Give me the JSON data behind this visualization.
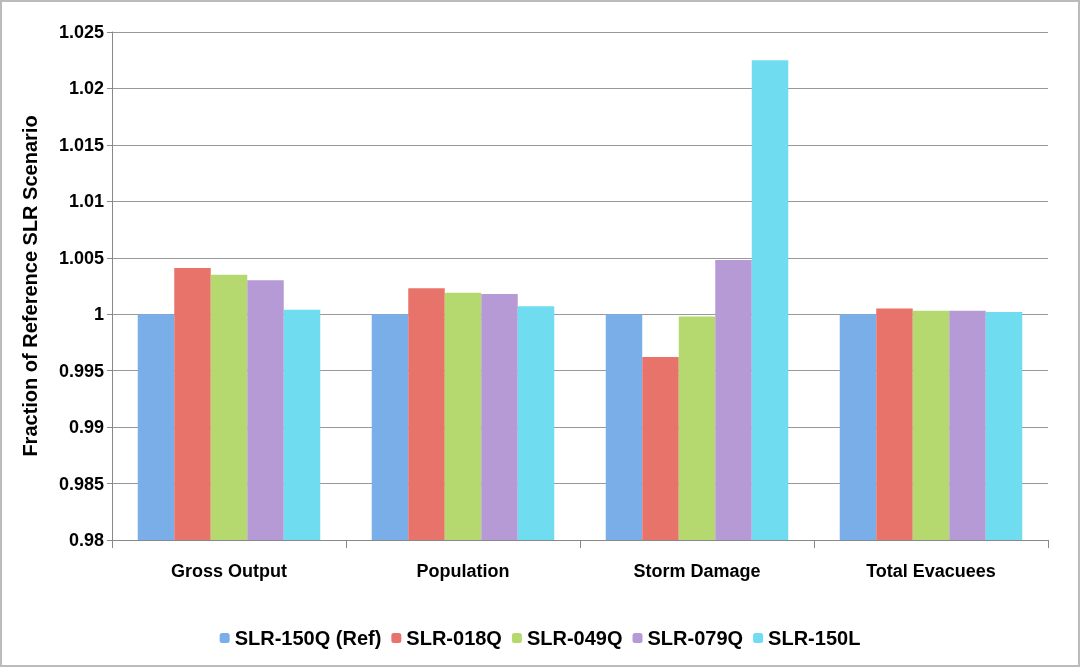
{
  "chart_data": {
    "type": "bar",
    "ylabel": "Fraction of Reference SLR Scenario",
    "categories": [
      "Gross Output",
      "Population",
      "Storm Damage",
      "Total Evacuees"
    ],
    "series": [
      {
        "name": "SLR-150Q (Ref)",
        "color": "#7aaee8",
        "values": [
          1.0,
          1.0,
          1.0,
          1.0
        ]
      },
      {
        "name": "SLR-018Q",
        "color": "#e8736b",
        "values": [
          1.0041,
          1.0023,
          0.9962,
          1.0005
        ]
      },
      {
        "name": "SLR-049Q",
        "color": "#b5d96e",
        "values": [
          1.0035,
          1.0019,
          0.9998,
          1.0003
        ]
      },
      {
        "name": "SLR-079Q",
        "color": "#b69ad6",
        "values": [
          1.003,
          1.0018,
          1.0048,
          1.0003
        ]
      },
      {
        "name": "SLR-150L",
        "color": "#6fdcef",
        "values": [
          1.0004,
          1.0007,
          1.0225,
          1.0002
        ]
      }
    ],
    "ylim": [
      0.98,
      1.025
    ],
    "yticks": [
      0.98,
      0.985,
      0.99,
      0.995,
      1,
      1.005,
      1.01,
      1.015,
      1.02,
      1.025
    ],
    "grid": "y",
    "legend": "bottom"
  }
}
